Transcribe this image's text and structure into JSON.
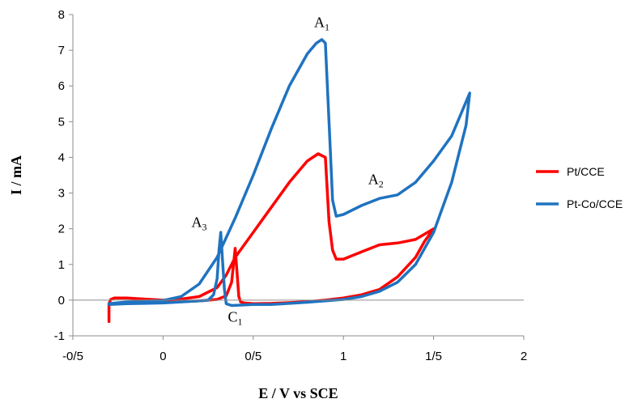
{
  "chart_data": {
    "type": "line",
    "xlabel": "E / V vs SCE",
    "ylabel": "I / mA",
    "xlim": [
      -0.5,
      2
    ],
    "ylim": [
      -1,
      8
    ],
    "x_ticks": [
      "-0/5",
      "0",
      "0/5",
      "1",
      "1/5",
      "2"
    ],
    "x_tick_values": [
      -0.5,
      0,
      0.5,
      1,
      1.5,
      2
    ],
    "y_ticks": [
      "-1",
      "0",
      "1",
      "2",
      "3",
      "4",
      "5",
      "6",
      "7",
      "8"
    ],
    "y_tick_values": [
      -1,
      0,
      1,
      2,
      3,
      4,
      5,
      6,
      7,
      8
    ],
    "grid": false,
    "legend_position": "right",
    "annotations": [
      {
        "base": "A",
        "sub": "1",
        "x": 0.88,
        "y": 7.65
      },
      {
        "base": "A",
        "sub": "2",
        "x": 1.18,
        "y": 3.25
      },
      {
        "base": "A",
        "sub": "3",
        "x": 0.2,
        "y": 2.05
      },
      {
        "base": "C",
        "sub": "1",
        "x": 0.4,
        "y": -0.6
      }
    ],
    "series": [
      {
        "name": "Pt/CCE",
        "color": "#ff0000",
        "x": [
          -0.3,
          -0.3,
          -0.29,
          -0.27,
          -0.2,
          -0.1,
          0,
          0.1,
          0.2,
          0.3,
          0.35,
          0.4,
          0.5,
          0.6,
          0.7,
          0.8,
          0.86,
          0.9,
          0.92,
          0.94,
          0.96,
          1.0,
          1.1,
          1.2,
          1.3,
          1.4,
          1.5,
          1.45,
          1.4,
          1.3,
          1.2,
          1.1,
          1.0,
          0.9,
          0.8,
          0.7,
          0.6,
          0.5,
          0.45,
          0.43,
          0.42,
          0.41,
          0.4,
          0.38,
          0.35,
          0.3,
          0.2,
          0.1,
          0,
          -0.1,
          -0.2,
          -0.28,
          -0.3
        ],
        "y": [
          -0.6,
          -0.1,
          0.02,
          0.06,
          0.06,
          0.03,
          0.0,
          0.03,
          0.1,
          0.35,
          0.7,
          1.2,
          1.9,
          2.6,
          3.3,
          3.9,
          4.1,
          4.0,
          2.2,
          1.4,
          1.15,
          1.15,
          1.35,
          1.55,
          1.6,
          1.7,
          2.0,
          1.65,
          1.2,
          0.65,
          0.3,
          0.15,
          0.06,
          0.0,
          -0.04,
          -0.07,
          -0.09,
          -0.1,
          -0.08,
          -0.05,
          0.1,
          0.8,
          1.45,
          0.5,
          0.12,
          0.02,
          -0.02,
          -0.04,
          -0.05,
          -0.06,
          -0.08,
          -0.1,
          -0.1
        ]
      },
      {
        "name": "Pt-Co/CCE",
        "color": "#1f73c0",
        "x": [
          -0.3,
          -0.2,
          -0.1,
          0,
          0.1,
          0.2,
          0.3,
          0.4,
          0.5,
          0.6,
          0.7,
          0.8,
          0.85,
          0.88,
          0.9,
          0.92,
          0.94,
          0.96,
          1.0,
          1.1,
          1.2,
          1.3,
          1.4,
          1.5,
          1.6,
          1.7,
          1.68,
          1.6,
          1.5,
          1.4,
          1.3,
          1.2,
          1.1,
          1.0,
          0.9,
          0.8,
          0.7,
          0.6,
          0.5,
          0.42,
          0.38,
          0.35,
          0.34,
          0.33,
          0.32,
          0.31,
          0.3,
          0.28,
          0.25,
          0.2,
          0.1,
          0,
          -0.1,
          -0.2,
          -0.3
        ],
        "y": [
          -0.1,
          -0.05,
          -0.03,
          -0.01,
          0.1,
          0.45,
          1.2,
          2.3,
          3.5,
          4.8,
          6.0,
          6.9,
          7.2,
          7.3,
          7.2,
          5.0,
          2.8,
          2.35,
          2.4,
          2.65,
          2.85,
          2.95,
          3.3,
          3.9,
          4.6,
          5.8,
          4.9,
          3.3,
          1.9,
          1.0,
          0.5,
          0.25,
          0.1,
          0.02,
          -0.02,
          -0.06,
          -0.09,
          -0.12,
          -0.12,
          -0.14,
          -0.15,
          -0.1,
          0.3,
          1.1,
          1.9,
          1.4,
          0.6,
          0.15,
          0.0,
          -0.02,
          -0.05,
          -0.08,
          -0.09,
          -0.1,
          -0.12
        ]
      }
    ]
  }
}
